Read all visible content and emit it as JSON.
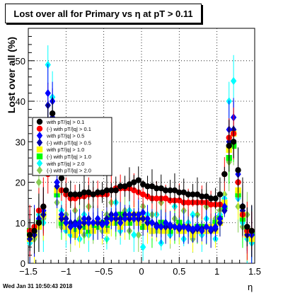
{
  "title": "Lost over all for Primary vs   η at pT > 0.11",
  "footer": "Wed Jan 31 10:50:43 2018",
  "chart_data": {
    "type": "scatter",
    "xlabel": "η",
    "ylabel": "Lost over all (%)",
    "xlim": [
      -1.5,
      1.5
    ],
    "ylim": [
      0,
      58
    ],
    "x_ticks": [
      "−1.5",
      "−1",
      "−0.5",
      "0",
      "0.5",
      "1",
      "1.5"
    ],
    "y_ticks": [
      "0",
      "10",
      "20",
      "30",
      "40",
      "50"
    ],
    "grid": true,
    "legend_position": "left",
    "series": [
      {
        "name": "with pT/|q| > 0.1",
        "color": "#000000",
        "marker": "circle",
        "x": [
          -1.48,
          -1.42,
          -1.36,
          -1.3,
          -1.24,
          -1.18,
          -1.12,
          -1.06,
          -1.0,
          -0.94,
          -0.88,
          -0.82,
          -0.76,
          -0.7,
          -0.64,
          -0.58,
          -0.52,
          -0.46,
          -0.4,
          -0.34,
          -0.28,
          -0.22,
          -0.16,
          -0.1,
          -0.04,
          0.02,
          0.08,
          0.14,
          0.2,
          0.26,
          0.32,
          0.38,
          0.44,
          0.5,
          0.56,
          0.62,
          0.68,
          0.74,
          0.8,
          0.86,
          0.92,
          0.98,
          1.04,
          1.1,
          1.16,
          1.22,
          1.28,
          1.34,
          1.4,
          1.46
        ],
        "y": [
          7,
          8,
          10,
          14,
          33,
          37,
          28,
          21,
          18,
          17,
          17,
          17,
          17.5,
          17.5,
          17,
          17.5,
          17.5,
          18,
          18,
          18,
          19,
          19,
          19.5,
          20,
          20.5,
          19.5,
          19,
          19,
          18.5,
          18.5,
          18,
          18,
          18,
          17.5,
          17.5,
          17,
          17,
          17,
          16.5,
          16.5,
          16,
          16,
          17,
          22,
          29,
          30,
          23,
          14,
          9,
          8
        ]
      },
      {
        "name": "(-) with pT/|q| > 0.1",
        "color": "#ff0000",
        "marker": "circle",
        "x": [
          -1.48,
          -1.42,
          -1.36,
          -1.3,
          -1.24,
          -1.18,
          -1.12,
          -1.06,
          -1.0,
          -0.94,
          -0.88,
          -0.82,
          -0.76,
          -0.7,
          -0.64,
          -0.58,
          -0.52,
          -0.46,
          -0.4,
          -0.34,
          -0.28,
          -0.22,
          -0.16,
          -0.1,
          -0.04,
          0.02,
          0.08,
          0.14,
          0.2,
          0.26,
          0.32,
          0.38,
          0.44,
          0.5,
          0.56,
          0.62,
          0.68,
          0.74,
          0.8,
          0.86,
          0.92,
          0.98,
          1.04,
          1.1,
          1.16,
          1.22,
          1.28,
          1.34,
          1.4,
          1.46
        ],
        "y": [
          8,
          9,
          13,
          14,
          22,
          28,
          26,
          18,
          17,
          16,
          16,
          16.5,
          16.5,
          17,
          17,
          17,
          17,
          17,
          18,
          18.5,
          18.5,
          18.5,
          18.5,
          18,
          17.5,
          17,
          16.5,
          16,
          16,
          16,
          16,
          15.5,
          15.5,
          15.5,
          15,
          15,
          15,
          15,
          15,
          15,
          14.5,
          14.5,
          14.5,
          22,
          31,
          32,
          20,
          12,
          8,
          8
        ]
      },
      {
        "name": "with pT/|q| > 0.5",
        "color": "#0000ff",
        "marker": "diamond",
        "x": [
          -1.48,
          -1.42,
          -1.36,
          -1.3,
          -1.24,
          -1.18,
          -1.12,
          -1.06,
          -1.0,
          -0.94,
          -0.88,
          -0.82,
          -0.76,
          -0.7,
          -0.64,
          -0.58,
          -0.52,
          -0.46,
          -0.4,
          -0.34,
          -0.28,
          -0.22,
          -0.16,
          -0.1,
          -0.04,
          0.02,
          0.08,
          0.14,
          0.2,
          0.26,
          0.32,
          0.38,
          0.44,
          0.5,
          0.56,
          0.62,
          0.68,
          0.74,
          0.8,
          0.86,
          0.92,
          0.98,
          1.04,
          1.1,
          1.16,
          1.22,
          1.28,
          1.34,
          1.4,
          1.46
        ],
        "y": [
          7,
          8,
          11,
          13,
          42,
          40,
          20,
          12,
          10,
          9,
          9.5,
          10,
          11,
          10,
          10,
          11,
          9.5,
          10,
          11,
          12,
          10,
          11,
          12,
          11,
          12,
          12.5,
          11,
          10,
          9,
          9,
          10,
          9.5,
          9,
          9,
          9,
          8.5,
          8.5,
          9,
          8,
          9,
          8.5,
          9,
          11,
          14,
          33,
          36,
          22,
          14,
          8,
          7
        ]
      },
      {
        "name": "(-) with pT/|q| > 0.5",
        "color": "#0000aa",
        "marker": "diamond",
        "x": [
          -1.48,
          -1.42,
          -1.36,
          -1.3,
          -1.24,
          -1.18,
          -1.12,
          -1.06,
          -1.0,
          -0.94,
          -0.88,
          -0.82,
          -0.76,
          -0.7,
          -0.64,
          -0.58,
          -0.52,
          -0.46,
          -0.4,
          -0.34,
          -0.28,
          -0.22,
          -0.16,
          -0.1,
          -0.04,
          0.02,
          0.08,
          0.14,
          0.2,
          0.26,
          0.32,
          0.38,
          0.44,
          0.5,
          0.56,
          0.62,
          0.68,
          0.74,
          0.8,
          0.86,
          0.92,
          0.98,
          1.04,
          1.1,
          1.16,
          1.22,
          1.28,
          1.34,
          1.4,
          1.46
        ],
        "y": [
          6,
          7,
          10,
          12,
          39,
          36,
          19,
          11,
          11,
          10,
          10,
          9,
          10,
          11,
          10,
          10,
          10,
          11,
          12,
          11,
          11,
          12,
          11,
          12,
          11,
          11,
          10,
          10,
          9.5,
          9,
          9,
          9,
          9,
          8.5,
          9,
          9,
          8,
          8.5,
          8.5,
          9,
          8,
          8.5,
          10,
          13,
          30,
          33,
          20,
          13,
          7,
          7
        ]
      },
      {
        "name": "with pT/|q| > 1.0",
        "color": "#ffff00",
        "marker": "square",
        "x": [
          -1.48,
          -1.42,
          -1.36,
          -1.3,
          -1.24,
          -1.18,
          -1.12,
          -1.06,
          -1.0,
          -0.94,
          -0.88,
          -0.82,
          -0.76,
          -0.7,
          -0.64,
          -0.58,
          -0.52,
          -0.46,
          -0.4,
          -0.34,
          -0.28,
          -0.22,
          -0.16,
          -0.1,
          -0.04,
          0.02,
          0.08,
          0.14,
          0.2,
          0.26,
          0.32,
          0.38,
          0.44,
          0.5,
          0.56,
          0.62,
          0.68,
          0.74,
          0.8,
          0.86,
          0.92,
          0.98,
          1.04,
          1.1,
          1.16,
          1.22,
          1.28,
          1.34,
          1.4,
          1.46
        ],
        "y": [
          6,
          7,
          9,
          12,
          30,
          33,
          18,
          11,
          9,
          8,
          7,
          8,
          10,
          9,
          8,
          10,
          9,
          8,
          10,
          11,
          9,
          10,
          11,
          12,
          10,
          11,
          9,
          8,
          9,
          8,
          8,
          9,
          9,
          8,
          8,
          9,
          7,
          8,
          8,
          8,
          9,
          8,
          10,
          15,
          28,
          32,
          18,
          12,
          7,
          6
        ]
      },
      {
        "name": "(-) with pT/|q| > 1.0",
        "color": "#00ff00",
        "marker": "square",
        "x": [
          -1.48,
          -1.42,
          -1.36,
          -1.3,
          -1.24,
          -1.18,
          -1.12,
          -1.06,
          -1.0,
          -0.94,
          -0.88,
          -0.82,
          -0.76,
          -0.7,
          -0.64,
          -0.58,
          -0.52,
          -0.46,
          -0.4,
          -0.34,
          -0.28,
          -0.22,
          -0.16,
          -0.1,
          -0.04,
          0.02,
          0.08,
          0.14,
          0.2,
          0.26,
          0.32,
          0.38,
          0.44,
          0.5,
          0.56,
          0.62,
          0.68,
          0.74,
          0.8,
          0.86,
          0.92,
          0.98,
          1.04,
          1.1,
          1.16,
          1.22,
          1.28,
          1.34,
          1.4,
          1.46
        ],
        "y": [
          8,
          7,
          10,
          12,
          28,
          30,
          17,
          10,
          9,
          9,
          8,
          10,
          9,
          8,
          9,
          9,
          10,
          9,
          11,
          10,
          12,
          11,
          10,
          11,
          12,
          9,
          10,
          8,
          9,
          10,
          9,
          8,
          9,
          10,
          9,
          9,
          8,
          9,
          9,
          8,
          9,
          10,
          11,
          14,
          26,
          29,
          17,
          11,
          8,
          7
        ]
      },
      {
        "name": "with pT/|q| > 2.0",
        "color": "#00ffff",
        "marker": "diamond",
        "x": [
          -1.48,
          -1.42,
          -1.36,
          -1.3,
          -1.24,
          -1.18,
          -1.12,
          -1.06,
          -1.0,
          -0.94,
          -0.88,
          -0.82,
          -0.76,
          -0.7,
          -0.64,
          -0.58,
          -0.52,
          -0.46,
          -0.4,
          -0.34,
          -0.28,
          -0.22,
          -0.16,
          -0.1,
          -0.04,
          0.02,
          0.08,
          0.14,
          0.2,
          0.26,
          0.32,
          0.38,
          0.44,
          0.5,
          0.56,
          0.62,
          0.68,
          0.74,
          0.8,
          0.86,
          0.92,
          0.98,
          1.04,
          1.1,
          1.16,
          1.22,
          1.28,
          1.34,
          1.4,
          1.46
        ],
        "y": [
          5,
          9,
          12,
          10,
          49,
          41,
          17,
          13,
          8,
          7,
          10,
          6,
          12,
          7,
          8,
          11,
          10,
          6,
          11,
          15,
          8,
          10,
          13,
          7,
          11,
          4,
          12,
          8,
          12,
          5,
          10,
          7,
          14,
          9,
          6,
          10,
          12,
          8,
          7,
          11,
          9,
          6,
          12,
          16,
          40,
          45,
          16,
          10,
          6,
          5
        ]
      },
      {
        "name": "(-) with pT/|q| > 2.0",
        "color": "#88cc55",
        "marker": "diamond",
        "x": [
          -1.48,
          -1.42,
          -1.36,
          -1.3,
          -1.24,
          -1.18,
          -1.12,
          -1.06,
          -1.0,
          -0.94,
          -0.88,
          -0.82,
          -0.76,
          -0.7,
          -0.64,
          -0.58,
          -0.52,
          -0.46,
          -0.4,
          -0.34,
          -0.28,
          -0.22,
          -0.16,
          -0.1,
          -0.04,
          0.02,
          0.08,
          0.14,
          0.2,
          0.26,
          0.32,
          0.38,
          0.44,
          0.5,
          0.56,
          0.62,
          0.68,
          0.74,
          0.8,
          0.86,
          0.92,
          0.98,
          1.04,
          1.1,
          1.16,
          1.22,
          1.28,
          1.34,
          1.4,
          1.46
        ],
        "y": [
          7,
          6,
          20,
          11,
          30,
          34,
          15,
          9,
          12,
          7,
          13,
          11,
          7,
          14,
          9,
          11,
          8,
          12,
          15,
          10,
          9,
          13,
          8,
          11,
          7,
          14,
          10,
          12,
          8,
          15,
          9,
          7,
          11,
          8,
          13,
          10,
          6,
          12,
          9,
          14,
          8,
          11,
          13,
          17,
          25,
          29,
          14,
          9,
          12,
          7
        ]
      }
    ]
  }
}
